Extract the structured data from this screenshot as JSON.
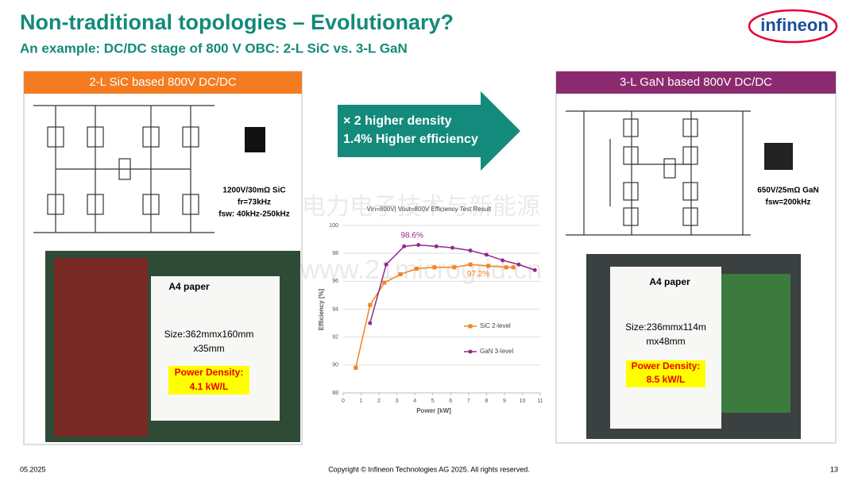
{
  "header": {
    "title": "Non-traditional topologies – Evolutionary?",
    "subtitle": "An example: DC/DC stage of 800 V OBC: 2-L SiC vs. 3-L GaN",
    "logo": "infineon"
  },
  "left_panel": {
    "heading": "2-L SiC based 800V DC/DC",
    "device_specs": [
      "1200V/30mΩ SiC",
      "fr=73kHz",
      "fsw: 40kHz-250kHz"
    ],
    "paper_label": "A4 paper",
    "size": [
      "Size:362mmx160mm",
      "x35mm"
    ],
    "power_density": [
      "Power Density:",
      "4.1 kW/L"
    ]
  },
  "arrow": [
    "× 2 higher density",
    "1.4% Higher efficiency"
  ],
  "right_panel": {
    "heading": "3-L GaN based 800V DC/DC",
    "device_specs": [
      "650V/25mΩ GaN",
      "fsw=200kHz"
    ],
    "paper_label": "A4 paper",
    "size": [
      "Size:236mmx114m",
      "mx48mm"
    ],
    "power_density": [
      "Power Density:",
      "8.5 kW/L"
    ]
  },
  "watermark": [
    "电力电子技术与新能源",
    "www.21microgrid.cn"
  ],
  "chart_data": {
    "type": "line",
    "title": "Vin=800V| Vout=800V Efficiency Test Result",
    "x_label": "Power [kW]",
    "y_label": "Efficiency [%]",
    "xlim": [
      0,
      11
    ],
    "xticks": [
      0,
      1,
      2,
      3,
      4,
      5,
      6,
      7,
      8,
      9,
      10,
      11
    ],
    "ylim": [
      88,
      100
    ],
    "yticks": [
      88,
      90,
      92,
      94,
      96,
      98,
      100
    ],
    "grid": true,
    "legend": "right",
    "series": [
      {
        "name": "SiC 2-level",
        "color": "#f58220",
        "x": [
          0.7,
          1.5,
          2.3,
          3.2,
          4.1,
          5.1,
          6.2,
          7.1,
          8.1,
          9.1,
          9.5
        ],
        "values": [
          89.8,
          94.3,
          95.9,
          96.5,
          96.9,
          97.0,
          97.0,
          97.2,
          97.1,
          97.0,
          97.0
        ]
      },
      {
        "name": "GaN 3-level",
        "color": "#93298a",
        "x": [
          1.5,
          2.4,
          3.4,
          4.2,
          5.2,
          6.1,
          7.1,
          8.0,
          8.9,
          9.8,
          10.7
        ],
        "values": [
          93.0,
          97.2,
          98.5,
          98.6,
          98.5,
          98.4,
          98.2,
          97.9,
          97.5,
          97.2,
          96.8
        ]
      }
    ],
    "annotations": [
      "98.6%",
      "97.2%"
    ]
  },
  "footer": {
    "date": "05.2025",
    "copyright": "Copyright © Infineon Technologies AG 2025. All rights reserved.",
    "page": "13"
  }
}
